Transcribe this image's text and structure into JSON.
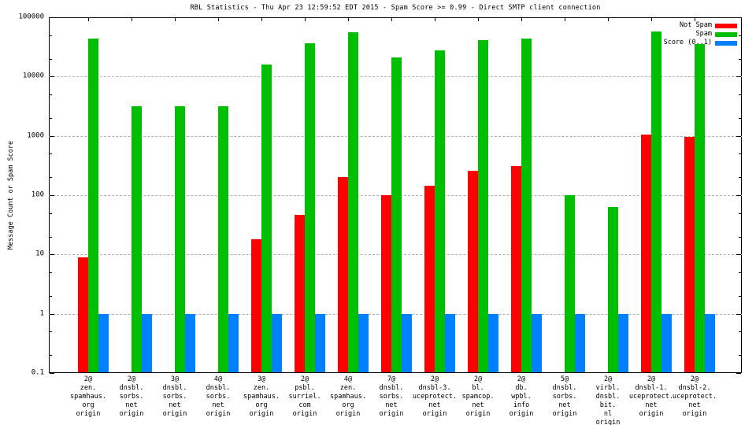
{
  "chart_data": {
    "type": "bar",
    "title": "RBL Statistics - Thu Apr 23 12:59:52 EDT 2015 - Spam Score >= 0.99 - Direct SMTP client connection",
    "ylabel": "Message Count or Spam Score",
    "yscale": "log",
    "ylim": [
      0.1,
      100000
    ],
    "ytick_values": [
      100000,
      10000,
      1000,
      100,
      10,
      1,
      0.1
    ],
    "ytick_labels": [
      "100000",
      "10000",
      "1000",
      "100",
      "10",
      "1",
      "0.1"
    ],
    "grid": "horizontal dashed lines at decade boundaries",
    "legend_position": "top-right",
    "background": "#ffffff",
    "frame_color": "#000000",
    "grid_color": "#b0b0b0",
    "categories": [
      [
        "2@",
        "zen.",
        "spamhaus.",
        "org",
        "origin"
      ],
      [
        "2@",
        "dnsbl.",
        "sorbs.",
        "net",
        "origin"
      ],
      [
        "3@",
        "dnsbl.",
        "sorbs.",
        "net",
        "origin"
      ],
      [
        "4@",
        "dnsbl.",
        "sorbs.",
        "net",
        "origin"
      ],
      [
        "3@",
        "zen.",
        "spamhaus.",
        "org",
        "origin"
      ],
      [
        "2@",
        "psbl.",
        "surriel.",
        "com",
        "origin"
      ],
      [
        "4@",
        "zen.",
        "spamhaus.",
        "org",
        "origin"
      ],
      [
        "7@",
        "dnsbl.",
        "sorbs.",
        "net",
        "origin"
      ],
      [
        "2@",
        "dnsbl-3.",
        "uceprotect.",
        "net",
        "origin"
      ],
      [
        "2@",
        "bl.",
        "spamcop.",
        "net",
        "origin"
      ],
      [
        "2@",
        "db.",
        "wpbl.",
        "info",
        "origin"
      ],
      [
        "5@",
        "dnsbl.",
        "sorbs.",
        "net",
        "origin"
      ],
      [
        "2@",
        "virbl.",
        "dnsbl.",
        "bit.",
        "nl",
        "origin"
      ],
      [
        "2@",
        "dnsbl-1.",
        "uceprotect.",
        "net",
        "origin"
      ],
      [
        "2@",
        "dnsbl-2.",
        "uceprotect.",
        "net",
        "origin"
      ]
    ],
    "series": [
      {
        "name": "Not Spam",
        "color": "#ff0000",
        "values": [
          9,
          null,
          null,
          null,
          18,
          47,
          200,
          100,
          145,
          260,
          310,
          null,
          null,
          1050,
          950
        ]
      },
      {
        "name": "Spam",
        "color": "#00bf00",
        "values": [
          44000,
          3200,
          3200,
          3200,
          16000,
          36000,
          56000,
          21000,
          28000,
          41000,
          44000,
          100,
          63,
          57000,
          35000
        ]
      },
      {
        "name": "Score (0..1)",
        "color": "#0080ff",
        "values": [
          1,
          1,
          1,
          1,
          1,
          1,
          1,
          1,
          1,
          1,
          1,
          1,
          1,
          1,
          1
        ]
      }
    ]
  }
}
